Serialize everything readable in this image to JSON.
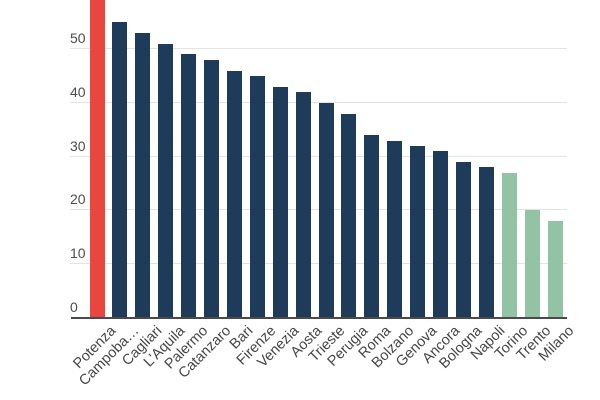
{
  "chart_data": {
    "type": "bar",
    "title": "",
    "xlabel": "",
    "ylabel": "",
    "categories": [
      "Potenza",
      "Campoba…",
      "Cagliari",
      "L'Aquila",
      "Palermo",
      "Catanzaro",
      "Bari",
      "Firenze",
      "Venezia",
      "Aosta",
      "Trieste",
      "Perugia",
      "Roma",
      "Bolzano",
      "Genova",
      "Ancora",
      "Bologna",
      "Napoli",
      "Torino",
      "Trento",
      "Milano"
    ],
    "values": [
      60,
      55,
      53,
      51,
      49,
      48,
      46,
      45,
      43,
      42,
      40,
      38,
      34,
      33,
      32,
      31,
      29,
      28,
      27,
      20,
      18
    ],
    "bar_roles": [
      "highlight",
      "primary",
      "primary",
      "primary",
      "primary",
      "primary",
      "primary",
      "primary",
      "primary",
      "primary",
      "primary",
      "primary",
      "primary",
      "primary",
      "primary",
      "primary",
      "primary",
      "primary",
      "secondary",
      "secondary",
      "secondary"
    ],
    "first_bar_clipped_at_top": true,
    "y_ticks": [
      0,
      10,
      20,
      30,
      40,
      50
    ],
    "ylim": [
      0,
      59
    ],
    "grid": true,
    "legend_position": "none",
    "colors": {
      "highlight": "#e8463f",
      "primary": "#1e3c59",
      "secondary": "#92c3a4",
      "gridline": "#e3e3e3",
      "axis_line": "#4a4a4a",
      "y_tick_text": "#4d4d4d",
      "x_label_text": "#454545",
      "background": "#ffffff"
    }
  }
}
